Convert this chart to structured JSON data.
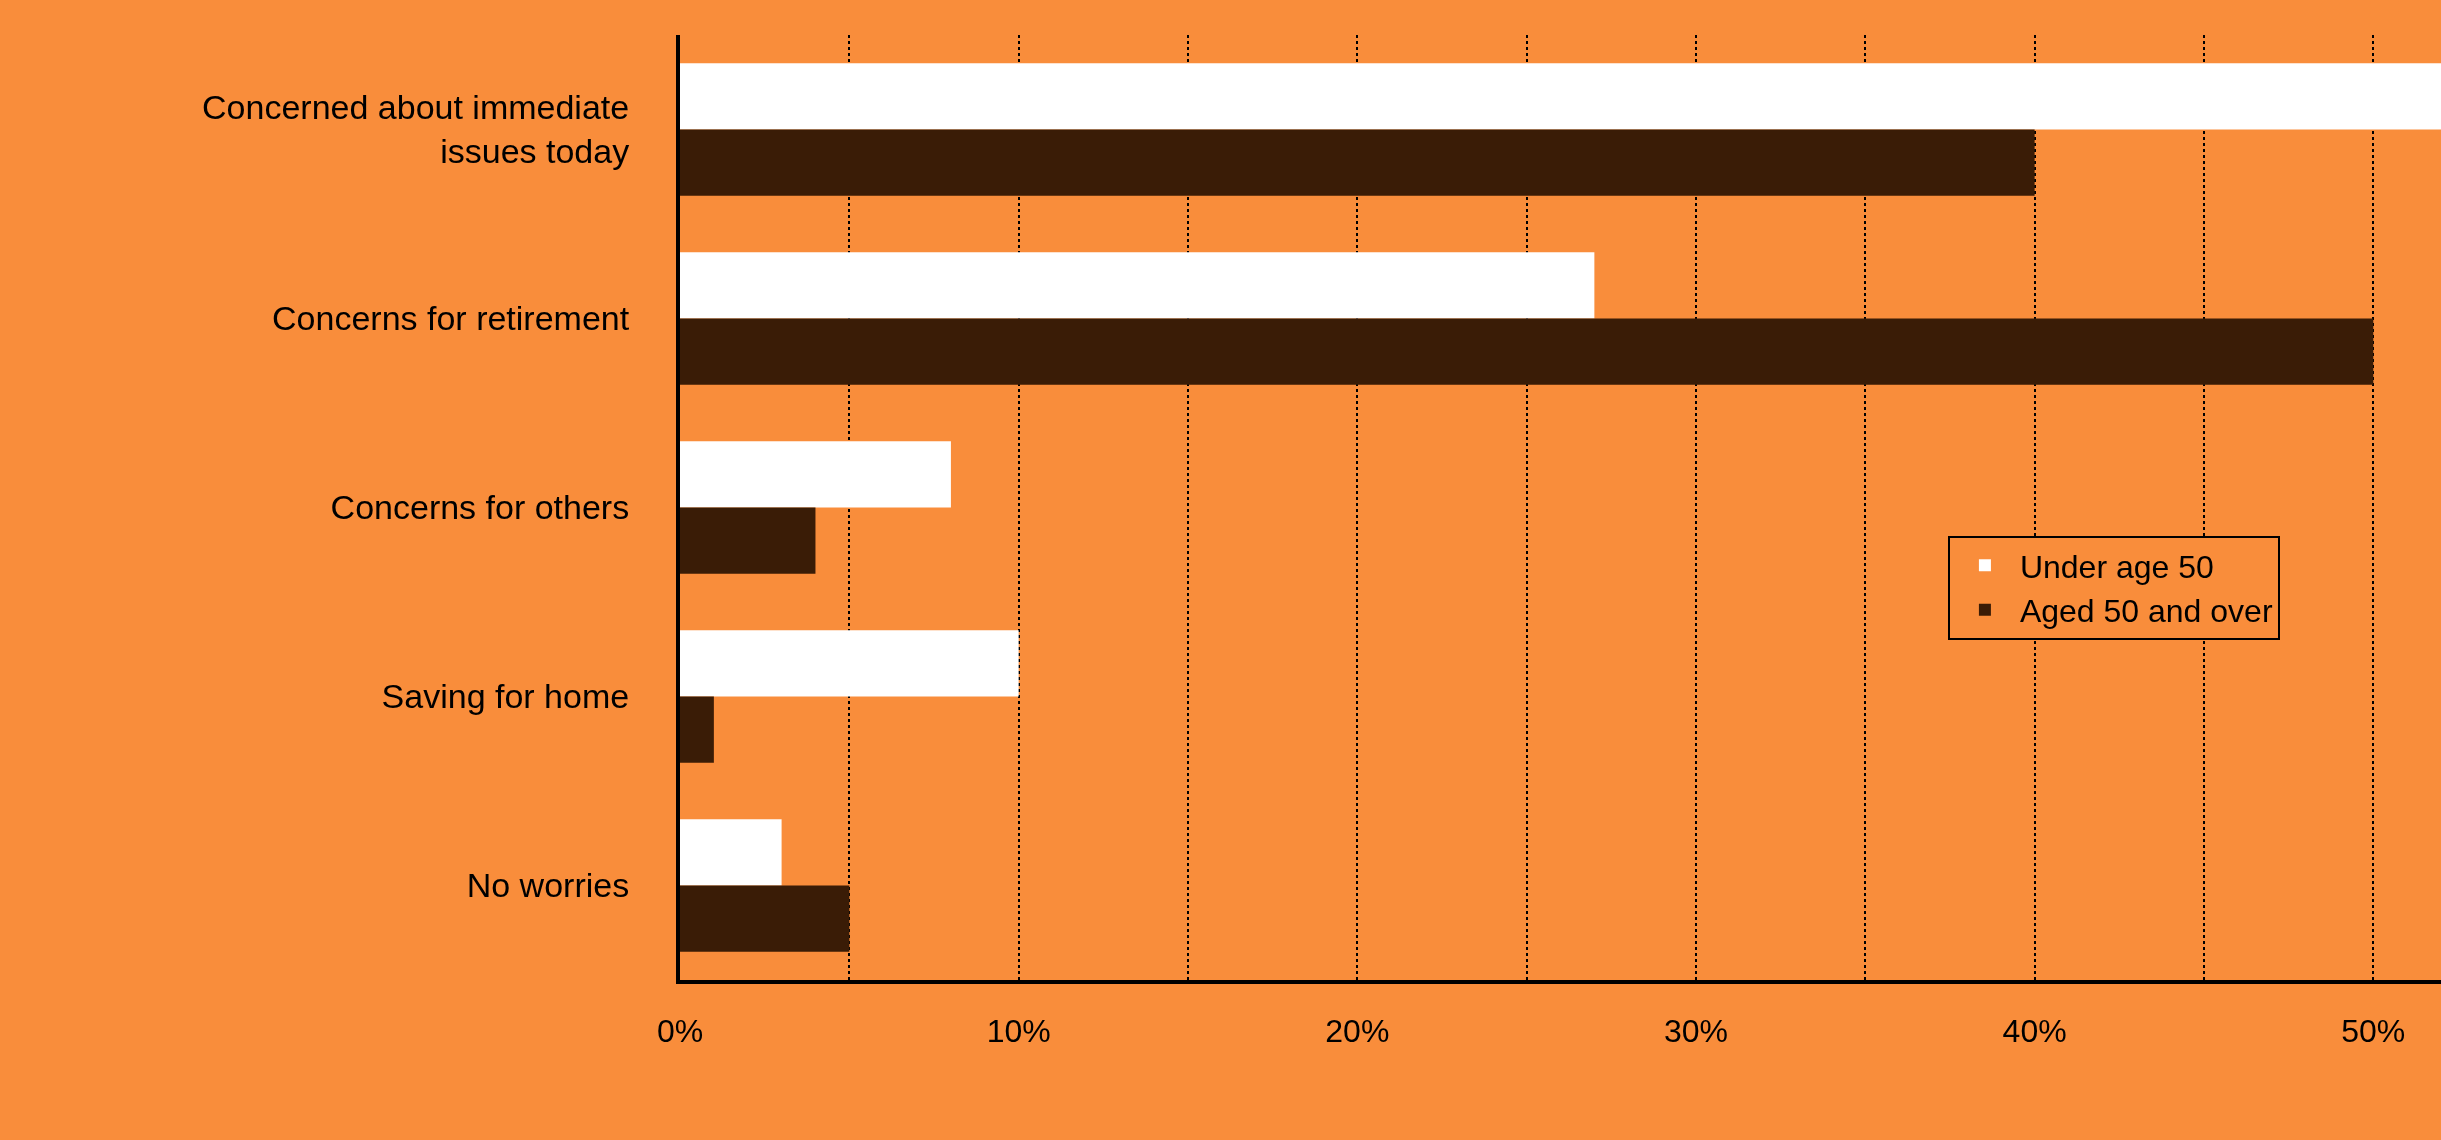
{
  "chart_data": {
    "type": "bar",
    "orientation": "horizontal",
    "categories": [
      "Concerned about immediate issues today",
      "Concerns for retirement",
      "Concerns for others",
      "Saving for home",
      "No worries"
    ],
    "series": [
      {
        "name": "Under age 50",
        "color": "#ffffff",
        "values": [
          52,
          27,
          8,
          10,
          3
        ]
      },
      {
        "name": "Aged 50 and over",
        "color": "#3a1c06",
        "values": [
          40,
          50,
          4,
          1,
          5
        ]
      }
    ],
    "xlim": [
      0,
      52
    ],
    "xticks": [
      {
        "value": 0,
        "label": "0%"
      },
      {
        "value": 5,
        "label": null
      },
      {
        "value": 10,
        "label": "10%"
      },
      {
        "value": 15,
        "label": null
      },
      {
        "value": 20,
        "label": "20%"
      },
      {
        "value": 25,
        "label": null
      },
      {
        "value": 30,
        "label": "30%"
      },
      {
        "value": 35,
        "label": null
      },
      {
        "value": 40,
        "label": "40%"
      },
      {
        "value": 45,
        "label": null
      },
      {
        "value": 50,
        "label": "50%"
      }
    ],
    "grid": "x",
    "legend": "right"
  }
}
